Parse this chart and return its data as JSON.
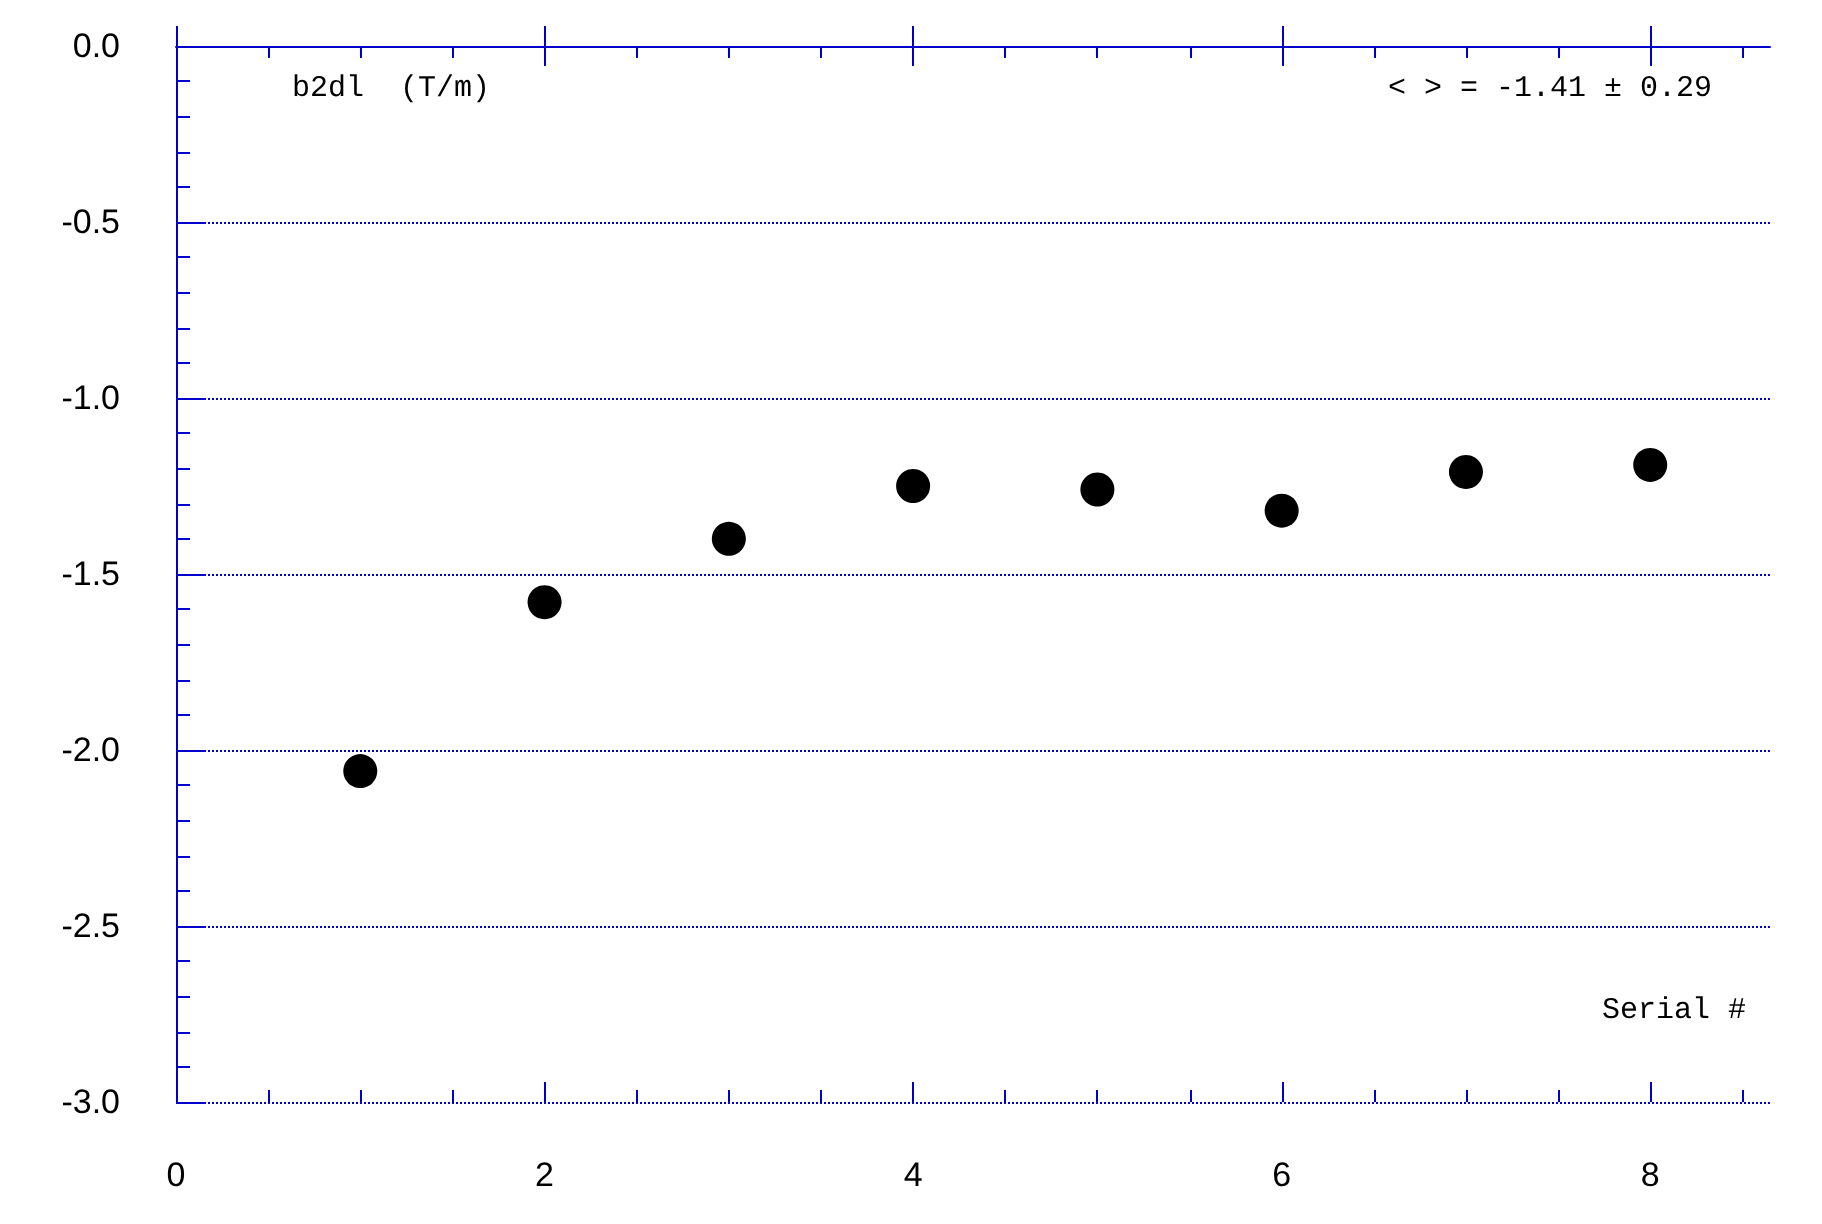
{
  "chart_data": {
    "type": "scatter",
    "ylabel": "b2dl  (T/m)",
    "xlabel": "Serial #",
    "annotations": [
      "< > = -1.41 ± 0.29"
    ],
    "x": [
      1,
      2,
      3,
      4,
      5,
      6,
      7,
      8
    ],
    "series": [
      {
        "color": "#000000",
        "values": [
          -2.06,
          -1.58,
          -1.4,
          -1.25,
          -1.26,
          -1.32,
          -1.21,
          -1.19
        ]
      }
    ],
    "xlim": [
      0,
      8.65
    ],
    "xticks": [
      0,
      2,
      4,
      6,
      8
    ],
    "ylim": [
      -3,
      0
    ],
    "yticks": [
      {
        "value": -3,
        "label": "-3.0"
      },
      -2.5,
      {
        "value": -2,
        "label": "-2.0"
      },
      -1.5,
      {
        "value": -1,
        "label": "-1.0"
      },
      -0.5,
      {
        "value": 0,
        "label": "0.0"
      }
    ],
    "grid": "y",
    "marker": "circle"
  }
}
